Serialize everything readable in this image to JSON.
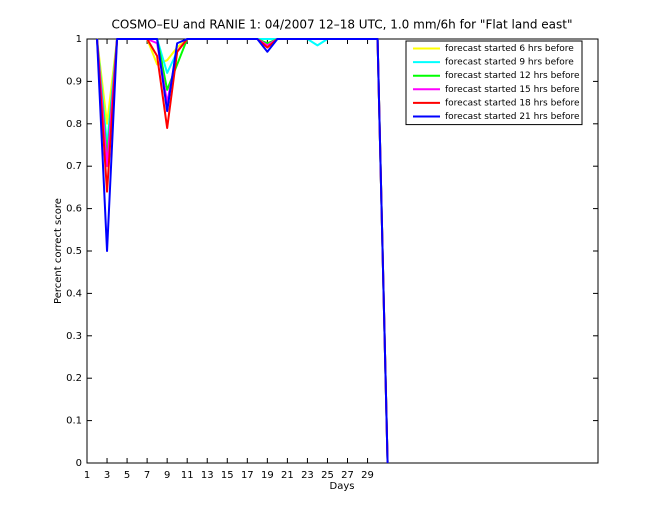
{
  "chart_data": {
    "type": "line",
    "title": "COSMO–EU and RANIE 1: 04/2007 12–18 UTC, 1.0 mm/6h for \"Flat land east\"",
    "xlabel": "Days",
    "ylabel": "Percent correct score",
    "x": [
      1,
      2,
      3,
      4,
      5,
      6,
      7,
      8,
      9,
      10,
      11,
      12,
      13,
      14,
      15,
      16,
      17,
      18,
      19,
      20,
      21,
      22,
      23,
      24,
      25,
      26,
      27,
      28,
      29,
      30,
      31
    ],
    "xlim": [
      1,
      52
    ],
    "xticks": [
      1,
      3,
      5,
      7,
      9,
      11,
      13,
      15,
      17,
      19,
      21,
      23,
      25,
      27,
      29
    ],
    "ylim": [
      0,
      1
    ],
    "yticks": [
      0,
      0.1,
      0.2,
      0.3,
      0.4,
      0.5,
      0.6,
      0.7,
      0.8,
      0.9,
      1
    ],
    "grid": false,
    "legend": "upper right",
    "series": [
      {
        "name": "forecast started 6 hrs before",
        "color": "#ffff00",
        "values": [
          null,
          1,
          0.8,
          1,
          1,
          1,
          1,
          0.94,
          0.95,
          0.98,
          1,
          1,
          1,
          1,
          1,
          1,
          1,
          1,
          1,
          1,
          1,
          1,
          1,
          1,
          1,
          1,
          1,
          1,
          1,
          1,
          0
        ]
      },
      {
        "name": "forecast started 9 hrs before",
        "color": "#00ffff",
        "values": [
          null,
          1,
          0.75,
          1,
          1,
          1,
          1,
          1,
          0.92,
          0.97,
          1,
          1,
          1,
          1,
          1,
          1,
          1,
          1,
          1,
          1,
          1,
          1,
          1,
          0.985,
          1,
          1,
          1,
          1,
          1,
          1,
          0
        ]
      },
      {
        "name": "forecast started 12 hrs before",
        "color": "#00ff00",
        "values": [
          null,
          1,
          0.72,
          1,
          1,
          1,
          1,
          1,
          0.88,
          0.94,
          1,
          1,
          1,
          1,
          1,
          1,
          1,
          1,
          0.99,
          1,
          1,
          1,
          1,
          1,
          1,
          1,
          1,
          1,
          1,
          1,
          0
        ]
      },
      {
        "name": "forecast started 15 hrs before",
        "color": "#ff00ff",
        "values": [
          null,
          1,
          0.7,
          1,
          1,
          1,
          1,
          0.99,
          0.85,
          0.97,
          1,
          1,
          1,
          1,
          1,
          1,
          1,
          1,
          0.985,
          1,
          1,
          1,
          1,
          1,
          1,
          1,
          1,
          1,
          1,
          1,
          0
        ]
      },
      {
        "name": "forecast started 18 hrs before",
        "color": "#ff0000",
        "values": [
          null,
          1,
          0.64,
          1,
          1,
          1,
          1,
          0.96,
          0.79,
          0.97,
          1,
          1,
          1,
          1,
          1,
          1,
          1,
          1,
          0.98,
          1,
          1,
          1,
          1,
          1,
          1,
          1,
          1,
          1,
          1,
          1,
          0
        ]
      },
      {
        "name": "forecast started 21 hrs before",
        "color": "#0000ff",
        "values": [
          null,
          1,
          0.5,
          1,
          1,
          1,
          1,
          1,
          0.83,
          0.99,
          1,
          1,
          1,
          1,
          1,
          1,
          1,
          1,
          0.97,
          1,
          1,
          1,
          1,
          1,
          1,
          1,
          1,
          1,
          1,
          1,
          0
        ]
      }
    ]
  }
}
